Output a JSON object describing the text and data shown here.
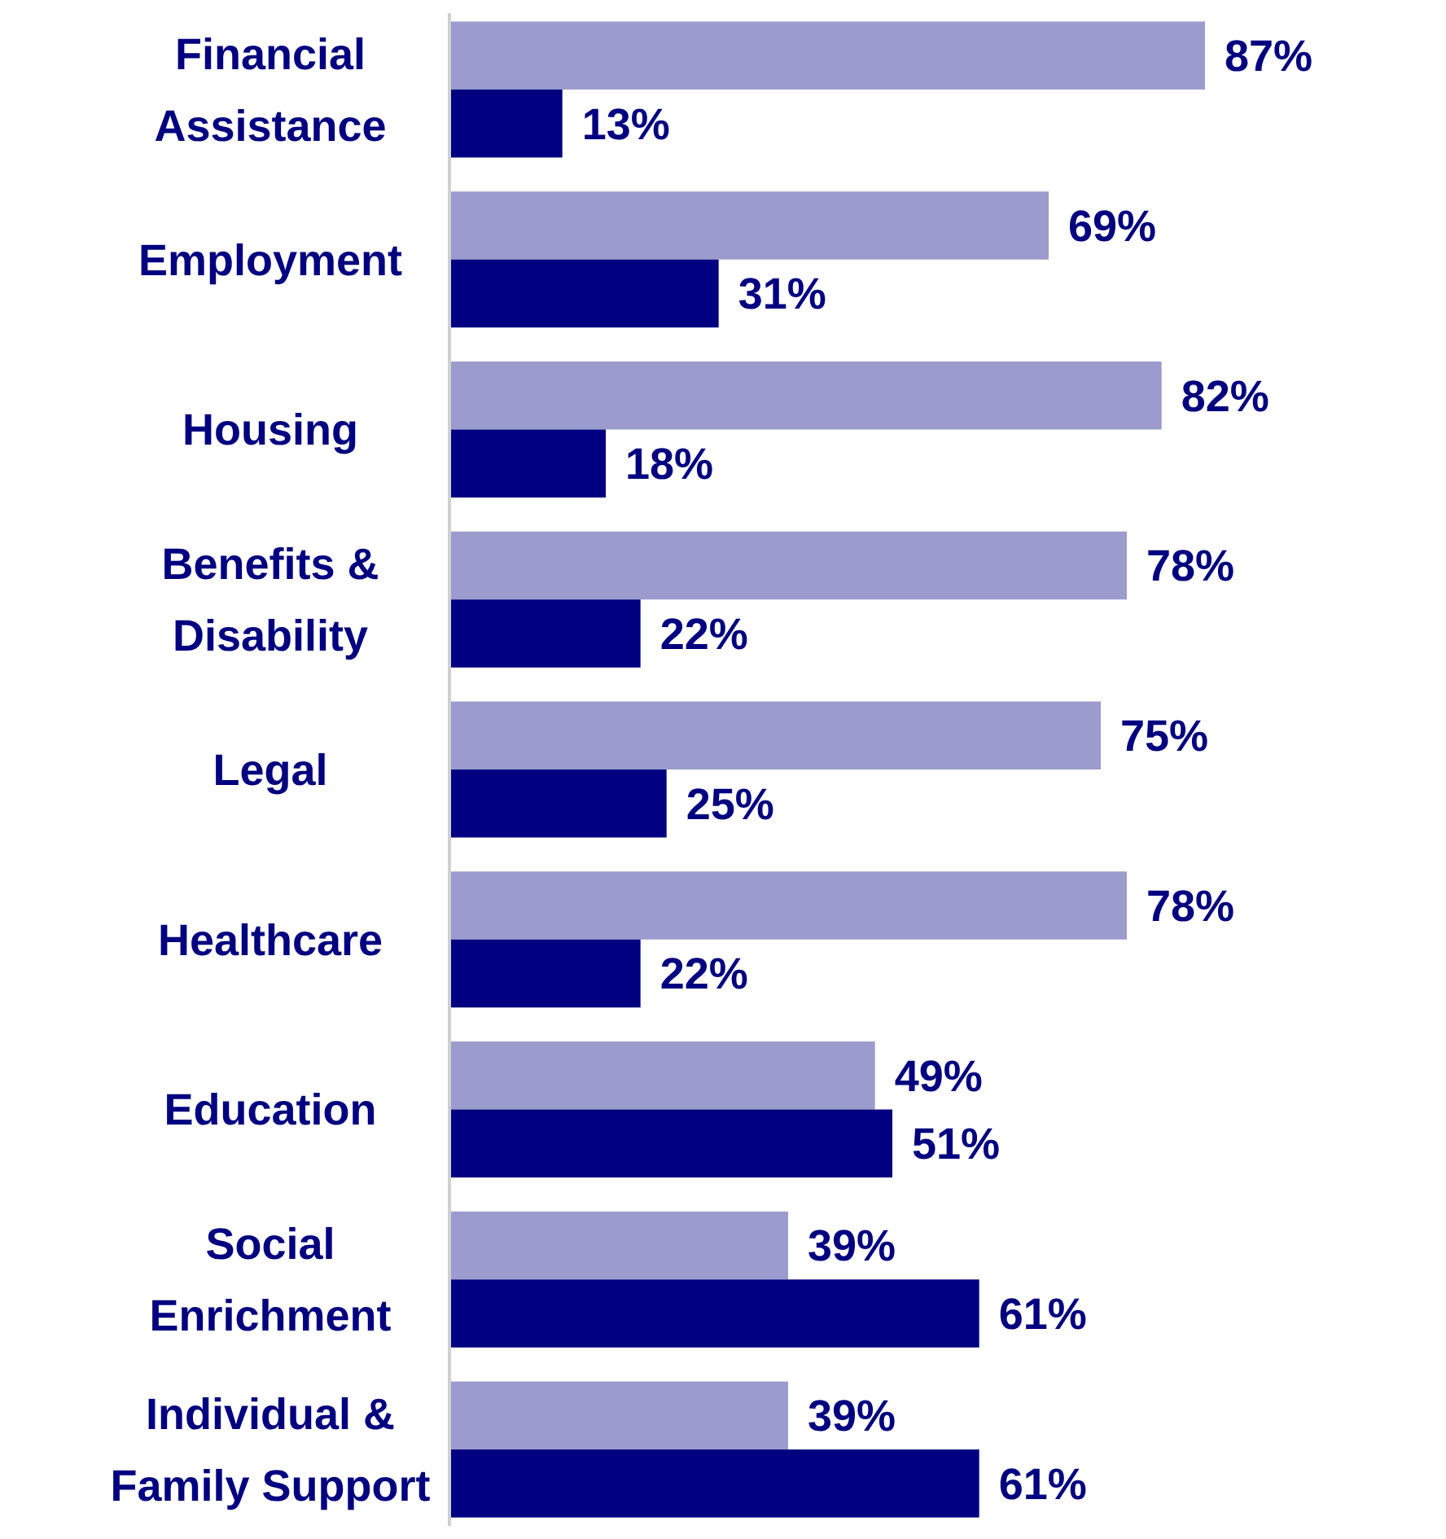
{
  "chart_data": {
    "type": "bar",
    "orientation": "horizontal",
    "categories": [
      "Financial Assistance",
      "Employment",
      "Housing",
      "Benefits & Disability",
      "Legal",
      "Healthcare",
      "Education",
      "Social Enrichment",
      "Individual & Family Support"
    ],
    "series": [
      {
        "color": "#9b9bcd",
        "values": [
          87,
          69,
          82,
          78,
          75,
          78,
          49,
          39,
          39
        ],
        "value_labels": [
          "87%",
          "69%",
          "82%",
          "78%",
          "75%",
          "78%",
          "49%",
          "39%",
          "39%"
        ]
      },
      {
        "color": "#000080",
        "values": [
          13,
          31,
          18,
          22,
          25,
          22,
          51,
          61,
          61
        ],
        "value_labels": [
          "13%",
          "31%",
          "18%",
          "22%",
          "25%",
          "22%",
          "51%",
          "61%",
          "61%"
        ]
      }
    ],
    "tick_labels": "y"
  }
}
